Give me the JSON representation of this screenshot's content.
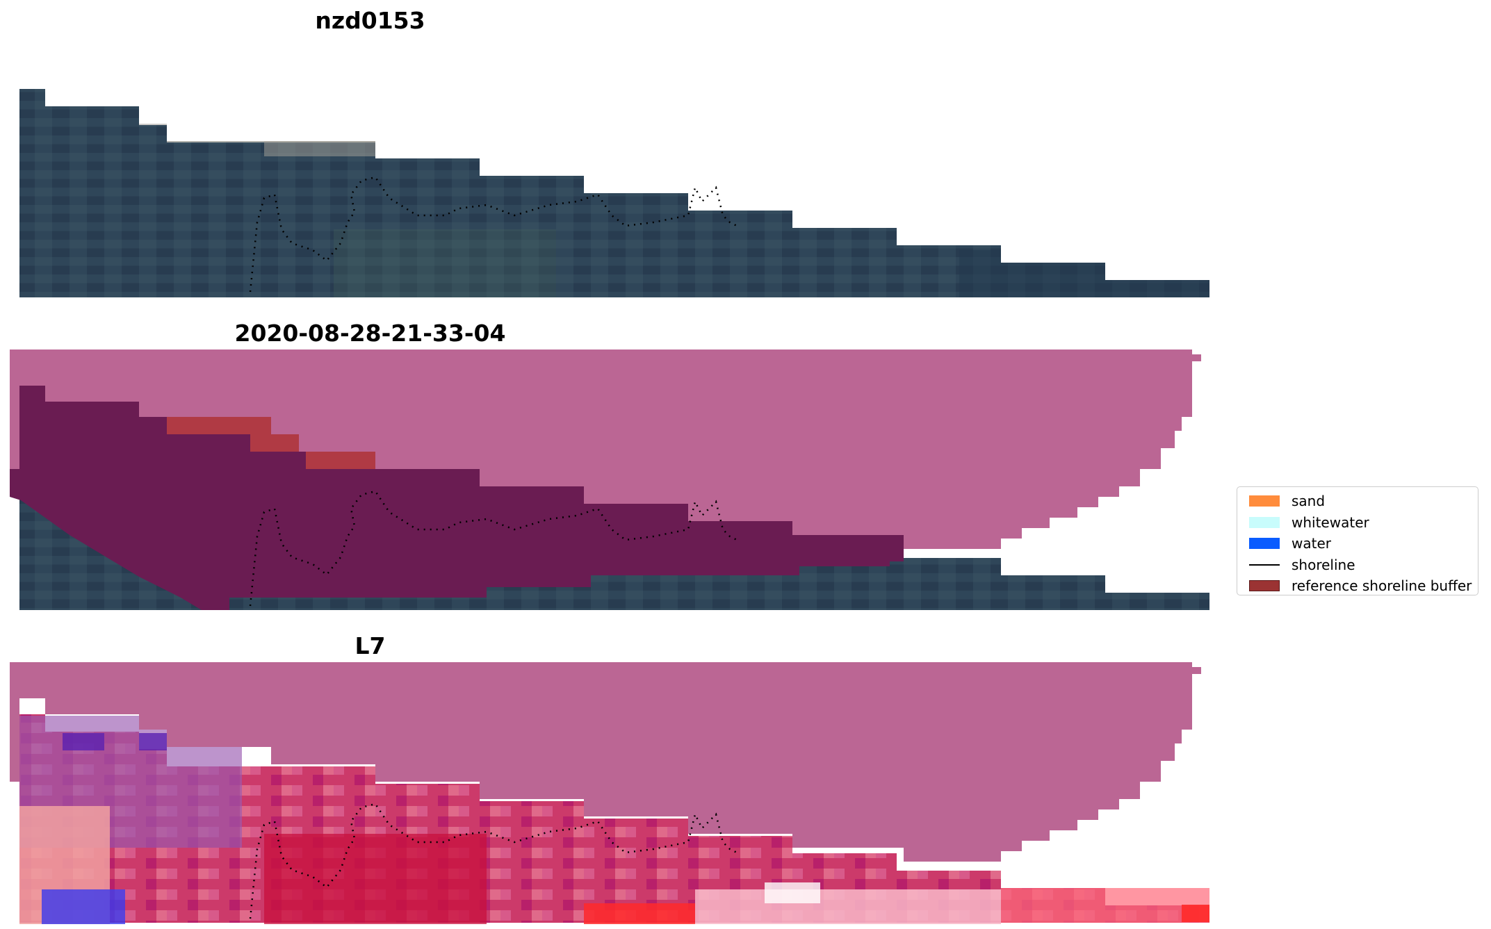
{
  "panels": [
    {
      "title": "nzd0153",
      "overlay": "none"
    },
    {
      "title": "2020-08-28-21-33-04",
      "overlay": "buffer"
    },
    {
      "title": "L7",
      "overlay": "classified"
    }
  ],
  "legend": {
    "items": [
      {
        "label": "sand",
        "color": "#ff8c3c",
        "kind": "patch"
      },
      {
        "label": "whitewater",
        "color": "#c8fcfc",
        "kind": "patch"
      },
      {
        "label": "water",
        "color": "#0a5cff",
        "kind": "patch"
      },
      {
        "label": "shoreline",
        "color": "#000000",
        "kind": "line"
      },
      {
        "label": "reference shoreline buffer",
        "color": "#9b3333",
        "kind": "patch"
      }
    ]
  },
  "colors": {
    "imagery_dark": "#2d4358",
    "imagery_mid": "#3b5466",
    "buffer_mask": "#bb6694",
    "buffer_inside": "#6a1c52",
    "red_strip": "#b03a44",
    "index_red": "#cc1f4a",
    "index_blue": "#2222dd",
    "index_purple": "#9a5ab0"
  }
}
